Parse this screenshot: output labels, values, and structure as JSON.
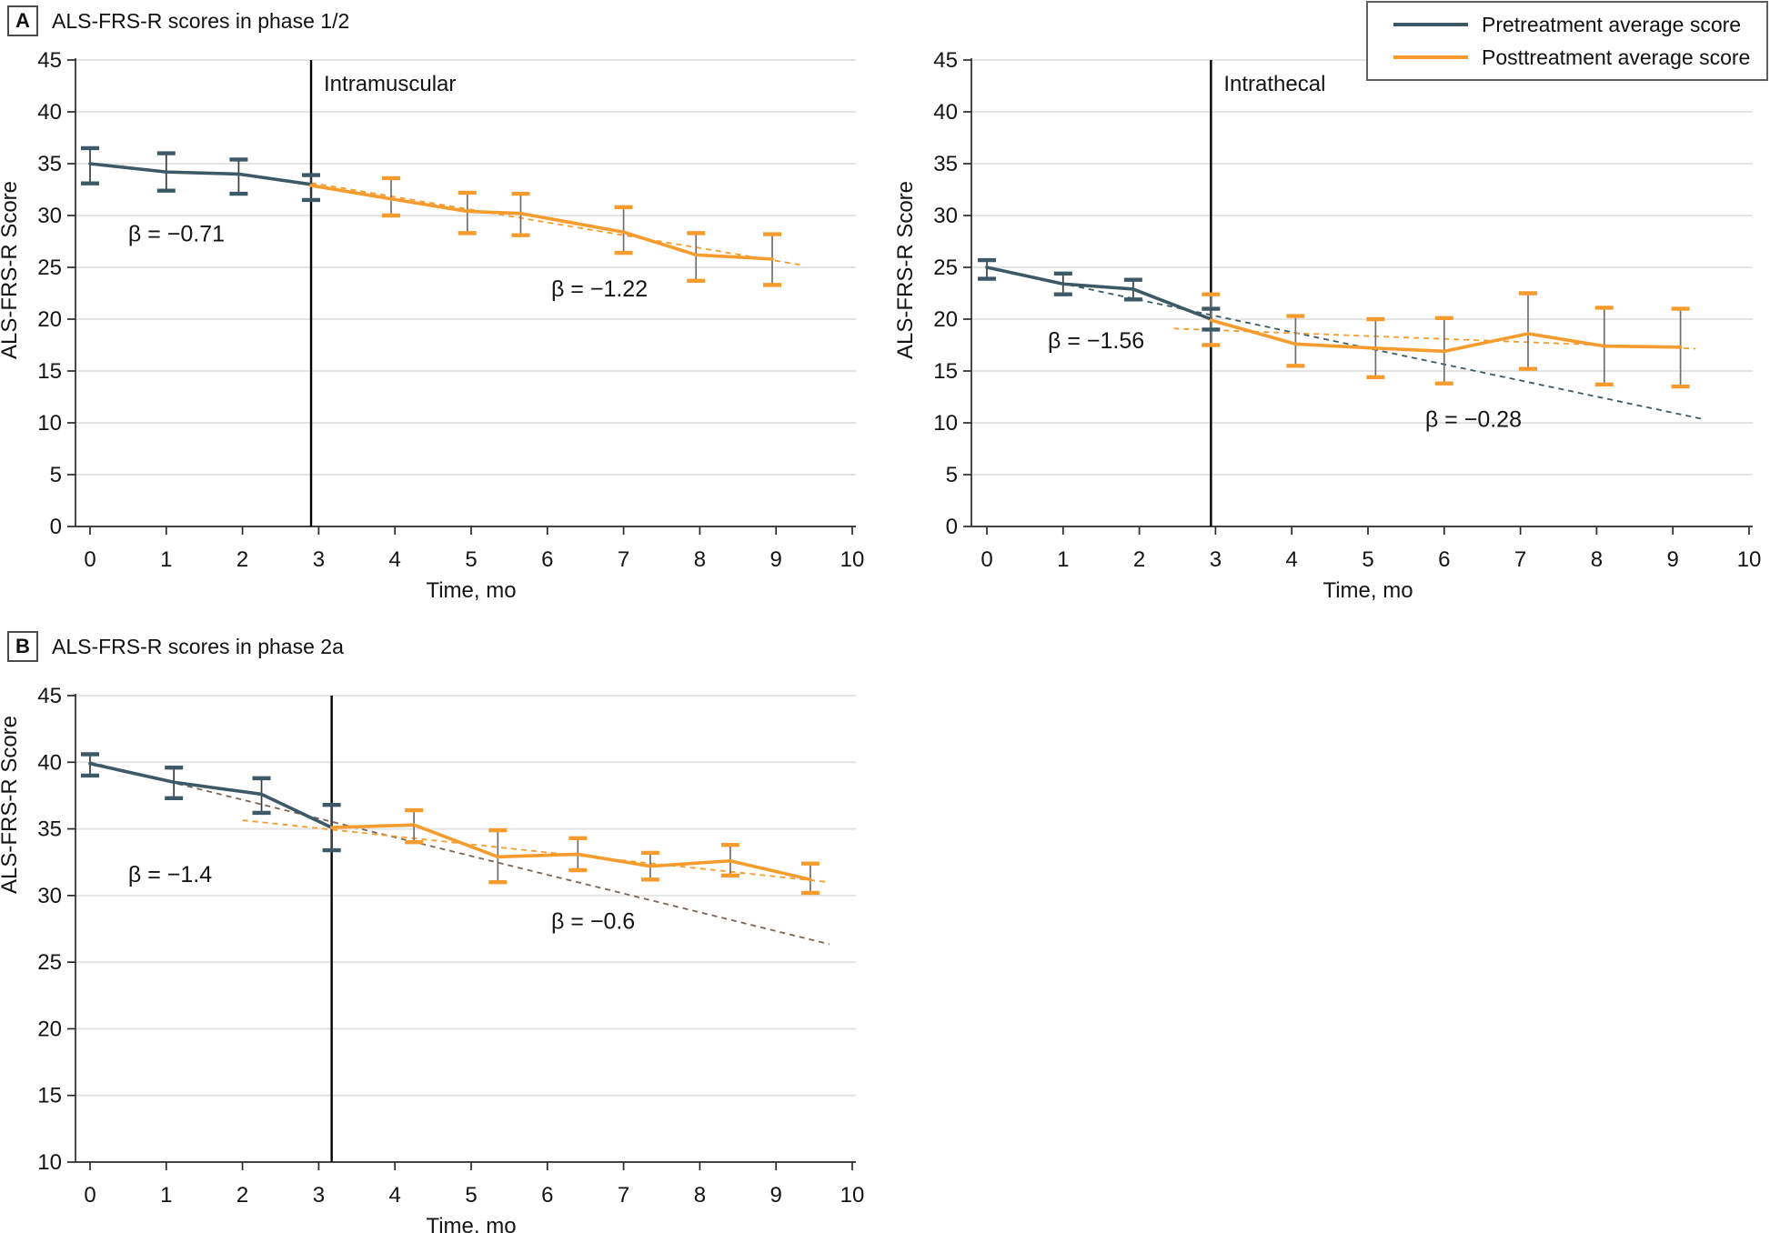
{
  "figure": {
    "panel_a": {
      "tag": "A",
      "title": "ALS-FRS-R scores in phase 1/2"
    },
    "panel_b": {
      "tag": "B",
      "title": "ALS-FRS-R scores in phase 2a"
    }
  },
  "legend": {
    "items": [
      {
        "label": "Pretreatment average score",
        "color": "#3d5966"
      },
      {
        "label": "Posttreatment average score",
        "color": "#f69c2e"
      }
    ]
  },
  "colors": {
    "pre": "#3d5966",
    "post": "#f69c2e",
    "pre_trend_b": "#7c6557",
    "grid": "#e4e4e4",
    "axis": "#2a2a2a",
    "text": "#141414",
    "stem_pre": "#3a3a3a",
    "stem_post": "#6f6f6f",
    "vline": "#000000"
  },
  "chart_data": [
    {
      "id": "intramuscular",
      "type": "line",
      "inline_label": "Intramuscular",
      "xlabel": "Time, mo",
      "ylabel": "ALS-FRS-R Score",
      "xlim": [
        0,
        10
      ],
      "ylim": [
        0,
        45
      ],
      "xticks": [
        0,
        1,
        2,
        3,
        4,
        5,
        6,
        7,
        8,
        9,
        10
      ],
      "yticks": [
        0,
        5,
        10,
        15,
        20,
        25,
        30,
        35,
        40,
        45
      ],
      "treatment_line_x": 2.9,
      "series": [
        {
          "name": "Pretreatment average score",
          "role": "pre",
          "x": [
            0,
            1,
            1.95,
            2.9
          ],
          "y": [
            35.0,
            34.2,
            34.0,
            33.0
          ],
          "err_lo": [
            33.1,
            32.4,
            32.1,
            31.5
          ],
          "err_hi": [
            36.5,
            36.0,
            35.4,
            33.9
          ]
        },
        {
          "name": "Posttreatment average score",
          "role": "post",
          "x": [
            2.9,
            3.95,
            4.95,
            5.65,
            7.0,
            7.95,
            8.95
          ],
          "y": [
            32.9,
            31.6,
            30.4,
            30.2,
            28.4,
            26.2,
            25.8
          ],
          "err_lo": [
            null,
            30.0,
            28.3,
            28.1,
            26.4,
            23.7,
            23.3
          ],
          "err_hi": [
            null,
            33.6,
            32.2,
            32.1,
            30.8,
            28.3,
            28.2
          ]
        }
      ],
      "trend_lines": [
        {
          "role": "post",
          "x": [
            2.9,
            9.35
          ],
          "y": [
            33.15,
            25.2
          ]
        }
      ],
      "annotations": [
        {
          "text": "β = −0.71",
          "x": 0.5,
          "y": 27.5
        },
        {
          "text": "β = −1.22",
          "x": 6.05,
          "y": 22.2
        }
      ]
    },
    {
      "id": "intrathecal",
      "type": "line",
      "inline_label": "Intrathecal",
      "xlabel": "Time, mo",
      "ylabel": "ALS-FRS-R Score",
      "xlim": [
        0,
        10
      ],
      "ylim": [
        0,
        45
      ],
      "xticks": [
        0,
        1,
        2,
        3,
        4,
        5,
        6,
        7,
        8,
        9,
        10
      ],
      "yticks": [
        0,
        5,
        10,
        15,
        20,
        25,
        30,
        35,
        40,
        45
      ],
      "treatment_line_x": 2.94,
      "series": [
        {
          "name": "Pretreatment average score",
          "role": "pre",
          "x": [
            0,
            1,
            1.92,
            2.94
          ],
          "y": [
            25.0,
            23.4,
            22.9,
            20.0
          ],
          "err_lo": [
            23.9,
            22.4,
            21.9,
            19.0
          ],
          "err_hi": [
            25.7,
            24.4,
            23.8,
            21.0
          ]
        },
        {
          "name": "Posttreatment average score",
          "role": "post",
          "x": [
            2.94,
            4.05,
            5.1,
            6.0,
            7.1,
            8.1,
            9.1
          ],
          "y": [
            19.9,
            17.6,
            17.2,
            16.9,
            18.6,
            17.4,
            17.3
          ],
          "err_lo": [
            17.5,
            15.5,
            14.4,
            13.8,
            15.2,
            13.7,
            13.5
          ],
          "err_hi": [
            22.4,
            20.3,
            20.0,
            20.1,
            22.5,
            21.1,
            21.0
          ]
        }
      ],
      "trend_lines": [
        {
          "role": "pre",
          "x": [
            0.05,
            9.4
          ],
          "y": [
            24.9,
            10.35
          ]
        },
        {
          "role": "post",
          "x": [
            2.45,
            9.3
          ],
          "y": [
            19.1,
            17.15
          ]
        }
      ],
      "annotations": [
        {
          "text": "β = −1.56",
          "x": 0.8,
          "y": 17.2
        },
        {
          "text": "β = −0.28",
          "x": 5.75,
          "y": 9.6
        }
      ]
    },
    {
      "id": "phase-2a",
      "type": "line",
      "inline_label": null,
      "xlabel": "Time, mo",
      "ylabel": "ALS-FRS-R Score",
      "xlim": [
        0,
        10
      ],
      "ylim": [
        10,
        45
      ],
      "xticks": [
        0,
        1,
        2,
        3,
        4,
        5,
        6,
        7,
        8,
        9,
        10
      ],
      "yticks": [
        10,
        15,
        20,
        25,
        30,
        35,
        40,
        45
      ],
      "treatment_line_x": 3.17,
      "series": [
        {
          "name": "Pretreatment average score",
          "role": "pre",
          "x": [
            0,
            1.1,
            2.25,
            3.17
          ],
          "y": [
            39.9,
            38.5,
            37.6,
            35.1
          ],
          "err_lo": [
            39.0,
            37.3,
            36.2,
            33.4
          ],
          "err_hi": [
            40.6,
            39.6,
            38.8,
            36.8
          ]
        },
        {
          "name": "Posttreatment average score",
          "role": "post",
          "x": [
            3.17,
            4.25,
            5.35,
            6.4,
            7.35,
            8.4,
            9.45
          ],
          "y": [
            35.1,
            35.3,
            32.9,
            33.1,
            32.2,
            32.6,
            31.2
          ],
          "err_lo": [
            null,
            34.0,
            31.0,
            31.9,
            31.2,
            31.5,
            30.2
          ],
          "err_hi": [
            null,
            36.4,
            34.9,
            34.3,
            33.2,
            33.8,
            32.4
          ]
        }
      ],
      "trend_lines": [
        {
          "role": "pre",
          "color": "pre_trend_b",
          "x": [
            0.0,
            9.7
          ],
          "y": [
            40.0,
            26.35
          ]
        },
        {
          "role": "post",
          "x": [
            2.0,
            9.7
          ],
          "y": [
            35.65,
            31.0
          ]
        }
      ],
      "annotations": [
        {
          "text": "β = −1.4",
          "x": 0.5,
          "y": 31.0
        },
        {
          "text": "β = −0.6",
          "x": 6.05,
          "y": 27.5
        }
      ]
    }
  ]
}
